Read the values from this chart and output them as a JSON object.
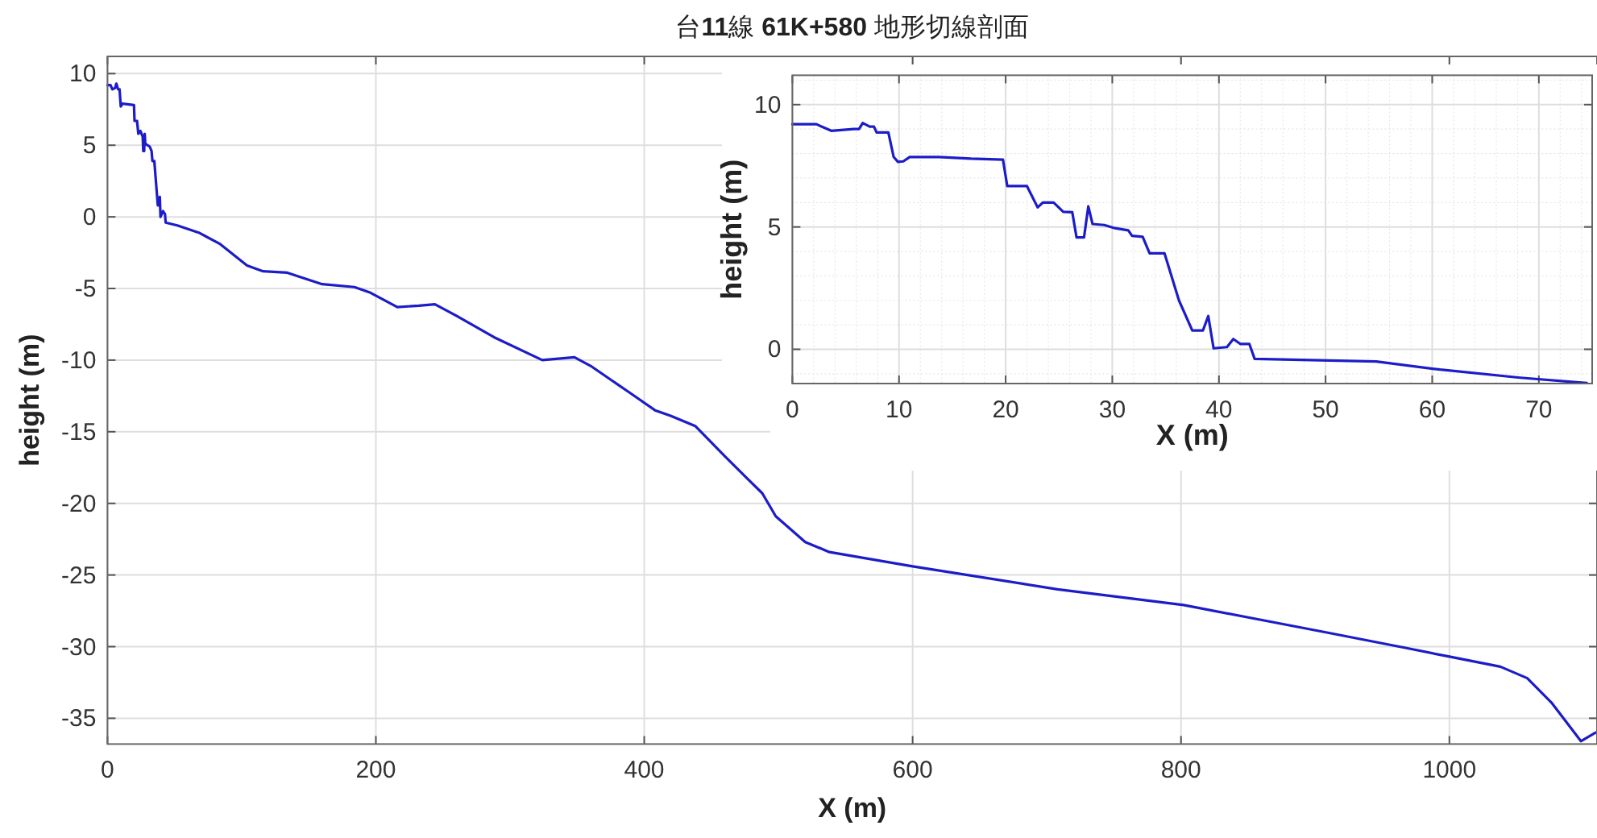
{
  "chart_data": [
    {
      "type": "line",
      "title": "台**11**線 **61K+580** 地形切線剖面",
      "xlabel": "X (m)",
      "ylabel": "height (m)",
      "xlim": [
        0,
        1110
      ],
      "ylim": [
        -36.8,
        11.2
      ],
      "xticks": [
        0,
        200,
        400,
        600,
        800,
        1000
      ],
      "yticks": [
        -35,
        -30,
        -25,
        -20,
        -15,
        -10,
        -5,
        0,
        5,
        10
      ],
      "grid": true,
      "series": [
        {
          "color": "#1c1cc8",
          "x": [
            0,
            2.25,
            3.65,
            5.75,
            6.6,
            7.9,
            9.0,
            9.9,
            11.0,
            19.75,
            20.15,
            22.0,
            23.0,
            24.5,
            26.25,
            26.65,
            27.35,
            27.75,
            28.15,
            31.5,
            32.85,
            33.5,
            34.9,
            37.5,
            38.5,
            39.0,
            39.5,
            41.35,
            42.85,
            43.35,
            52,
            68,
            84,
            104,
            116,
            134,
            160,
            184,
            196,
            216,
            232,
            244,
            260,
            288,
            324,
            348,
            360,
            388,
            408,
            420,
            438,
            460,
            476,
            488,
            498,
            520,
            538,
            600,
            708,
            802,
            908,
            968,
            1000,
            1038,
            1058,
            1076,
            1098,
            1109
          ],
          "values": [
            9.2,
            9.2,
            8.9,
            9.0,
            9.3,
            8.9,
            8.9,
            7.7,
            7.9,
            7.8,
            6.7,
            6.7,
            5.8,
            6.0,
            5.6,
            4.6,
            4.6,
            5.8,
            5.1,
            4.9,
            4.6,
            3.9,
            3.9,
            0.8,
            0.8,
            1.4,
            0.0,
            0.4,
            0.2,
            -0.4,
            -0.6,
            -1.1,
            -1.9,
            -3.4,
            -3.8,
            -3.9,
            -4.7,
            -4.9,
            -5.3,
            -6.3,
            -6.2,
            -6.1,
            -6.9,
            -8.4,
            -10.0,
            -9.8,
            -10.4,
            -12.2,
            -13.5,
            -13.9,
            -14.6,
            -16.7,
            -18.2,
            -19.3,
            -20.9,
            -22.7,
            -23.4,
            -24.4,
            -26.0,
            -27.1,
            -29.0,
            -30.1,
            -30.7,
            -31.4,
            -32.2,
            -33.9,
            -36.6,
            -36.0
          ]
        }
      ]
    },
    {
      "type": "line",
      "xlabel": "X (m)",
      "ylabel": "height (m)",
      "xlim": [
        0,
        75
      ],
      "ylim": [
        -1.4,
        11.2
      ],
      "xticks": [
        0,
        10,
        20,
        30,
        40,
        50,
        60,
        70
      ],
      "yticks": [
        0,
        5,
        10
      ],
      "grid": true,
      "series": [
        {
          "color": "#1c1cc8",
          "x": [
            0,
            2.25,
            3.65,
            5.75,
            6.25,
            6.6,
            7.25,
            7.65,
            7.9,
            9.0,
            9.5,
            9.9,
            10.4,
            11.0,
            13.75,
            16.75,
            19.75,
            20.15,
            22.0,
            23.0,
            23.5,
            24.5,
            25.4,
            26.25,
            26.65,
            27.35,
            27.75,
            28.15,
            29.25,
            30.25,
            31.5,
            31.85,
            32.85,
            33.5,
            34.9,
            36.25,
            37.5,
            38.5,
            39.0,
            39.5,
            40.75,
            41.35,
            42.0,
            42.85,
            43.35,
            54.75,
            60.75,
            68.25,
            74.5
          ],
          "values": [
            9.2,
            9.2,
            8.93,
            9.0,
            9.0,
            9.25,
            9.1,
            9.1,
            8.86,
            8.86,
            7.86,
            7.66,
            7.68,
            7.86,
            7.86,
            7.79,
            7.75,
            6.67,
            6.67,
            5.8,
            6.0,
            6.0,
            5.62,
            5.6,
            4.57,
            4.57,
            5.84,
            5.12,
            5.08,
            4.95,
            4.86,
            4.64,
            4.6,
            3.92,
            3.92,
            2.0,
            0.77,
            0.77,
            1.36,
            0.04,
            0.09,
            0.42,
            0.22,
            0.22,
            -0.39,
            -0.5,
            -0.83,
            -1.16,
            -1.38
          ]
        }
      ]
    }
  ]
}
